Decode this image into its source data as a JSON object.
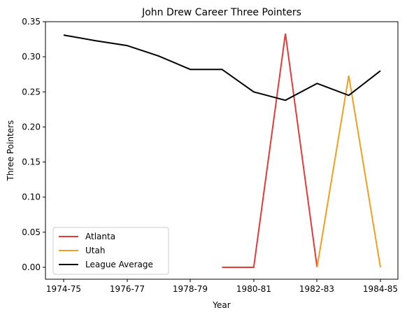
{
  "chart_data": {
    "type": "line",
    "title": "John Drew  Career Three Pointers",
    "xlabel": "Year",
    "ylabel": "Three Pointers",
    "x_ticks": [
      "1974-75",
      "1976-77",
      "1978-79",
      "1980-81",
      "1982-83",
      "1984-85"
    ],
    "y_ticks": [
      "0.00",
      "0.05",
      "0.10",
      "0.15",
      "0.20",
      "0.25",
      "0.30",
      "0.35"
    ],
    "ylim": [
      -0.017,
      0.35
    ],
    "grid": false,
    "legend_position": "lower-left",
    "series": [
      {
        "name": "Atlanta",
        "color": "#e03c3c",
        "points": [
          {
            "x": "1978-79+1",
            "xi": 6,
            "y": 0.0
          },
          {
            "xi": 7,
            "y": 0.0
          },
          {
            "xi": 8,
            "y": 0.333
          },
          {
            "xi": 9,
            "y": 0.0
          }
        ]
      },
      {
        "name": "Utah",
        "color": "#f0a020",
        "points": [
          {
            "xi": 9,
            "y": 0.0
          },
          {
            "xi": 10,
            "y": 0.273
          },
          {
            "xi": 11,
            "y": 0.0
          }
        ]
      },
      {
        "name": "League Average",
        "color": "#000000",
        "points": [
          {
            "xi": 1,
            "y": 0.331
          },
          {
            "xi": 2,
            "y": 0.323
          },
          {
            "xi": 3,
            "y": 0.316
          },
          {
            "xi": 4,
            "y": 0.301
          },
          {
            "xi": 5,
            "y": 0.282
          },
          {
            "xi": 6,
            "y": 0.282
          },
          {
            "xi": 7,
            "y": 0.25
          },
          {
            "xi": 8,
            "y": 0.238
          },
          {
            "xi": 9,
            "y": 0.262
          },
          {
            "xi": 10,
            "y": 0.245
          },
          {
            "xi": 11,
            "y": 0.28
          }
        ]
      }
    ]
  }
}
